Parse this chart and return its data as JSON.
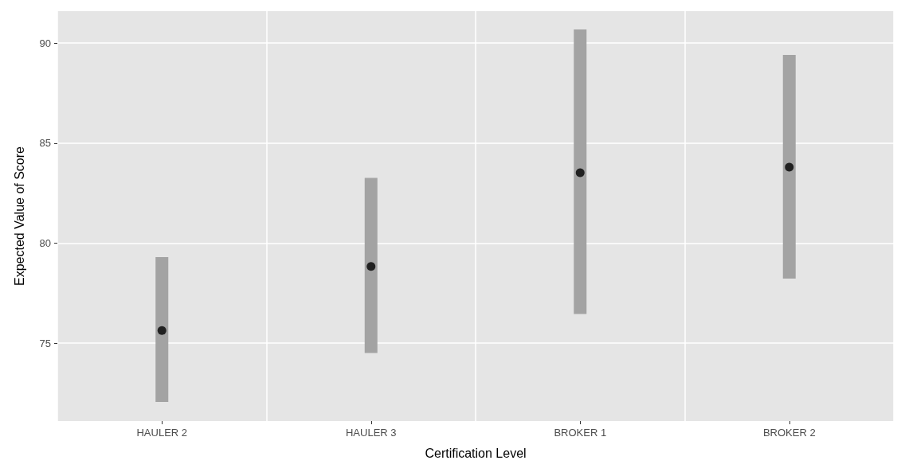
{
  "chart_data": {
    "type": "scatter",
    "xlabel": "Certification Level",
    "ylabel": "Expected Value of Score",
    "categories": [
      "HAULER 2",
      "HAULER 3",
      "BROKER 1",
      "BROKER 2"
    ],
    "series": [
      {
        "color": "#000000",
        "values": [
          75.63,
          78.83,
          83.52,
          83.8
        ],
        "errors": [
          [
            72.06,
            79.3
          ],
          [
            74.5,
            83.26
          ],
          [
            76.45,
            90.68
          ],
          [
            78.23,
            89.41
          ]
        ]
      }
    ],
    "ylim": [
      71.1,
      91.6
    ],
    "yticks": [
      75,
      80,
      85,
      90
    ],
    "grid": true,
    "marker": "circle"
  }
}
